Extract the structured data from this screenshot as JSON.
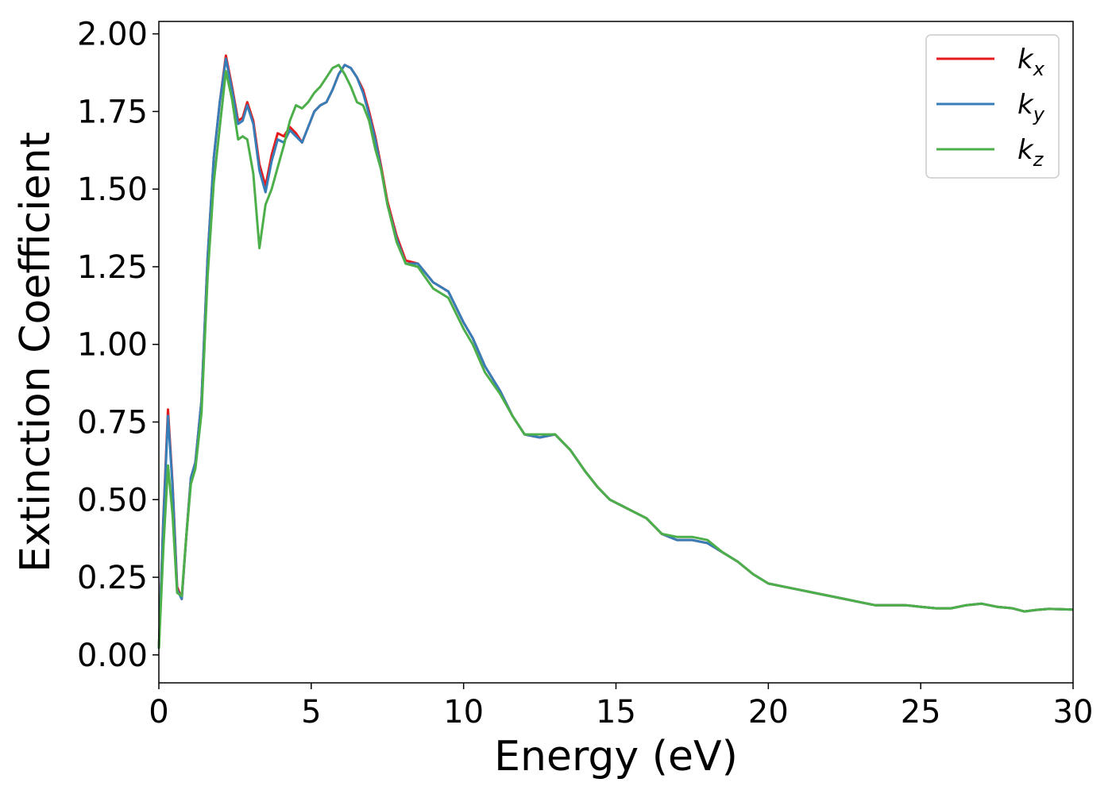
{
  "chart_data": {
    "type": "line",
    "xlabel": "Energy (eV)",
    "ylabel": "Extinction Coefficient",
    "xlim": [
      0,
      30
    ],
    "ylim": [
      -0.09,
      2.04
    ],
    "xticks": [
      0,
      5,
      10,
      15,
      20,
      25,
      30
    ],
    "yticks": [
      0.0,
      0.25,
      0.5,
      0.75,
      1.0,
      1.25,
      1.5,
      1.75,
      2.0
    ],
    "xtick_labels": [
      "0",
      "5",
      "10",
      "15",
      "20",
      "25",
      "30"
    ],
    "ytick_labels": [
      "0.00",
      "0.25",
      "0.50",
      "0.75",
      "1.00",
      "1.25",
      "1.50",
      "1.75",
      "2.00"
    ],
    "grid": false,
    "legend_position": "top-right",
    "series": [
      {
        "name": "k",
        "subscript": "x",
        "color": "#e41a1c",
        "x": [
          0,
          0.15,
          0.3,
          0.45,
          0.6,
          0.75,
          0.9,
          1.05,
          1.2,
          1.4,
          1.6,
          1.8,
          2.0,
          2.2,
          2.4,
          2.6,
          2.75,
          2.9,
          3.1,
          3.3,
          3.5,
          3.7,
          3.9,
          4.1,
          4.3,
          4.5,
          4.7,
          4.9,
          5.1,
          5.3,
          5.5,
          5.7,
          5.9,
          6.1,
          6.3,
          6.5,
          6.7,
          6.9,
          7.1,
          7.3,
          7.5,
          7.8,
          8.1,
          8.5,
          9.0,
          9.5,
          10.0,
          10.3,
          10.7,
          11.2,
          11.6,
          12.0,
          12.5,
          13.0,
          13.5,
          14.0,
          14.4,
          14.8,
          15.2,
          15.6,
          16.0,
          16.5,
          17.0,
          17.5,
          18.0,
          18.5,
          19.0,
          19.5,
          20.0,
          20.5,
          21.0,
          21.5,
          22.0,
          22.5,
          23.0,
          23.5,
          24.0,
          24.5,
          25.0,
          25.5,
          26.0,
          26.5,
          27.0,
          27.5,
          28.0,
          28.4,
          28.8,
          29.2,
          29.6,
          30.0
        ],
        "values": [
          0.02,
          0.45,
          0.79,
          0.55,
          0.22,
          0.18,
          0.38,
          0.57,
          0.62,
          0.82,
          1.28,
          1.6,
          1.78,
          1.93,
          1.83,
          1.72,
          1.73,
          1.78,
          1.72,
          1.58,
          1.51,
          1.61,
          1.68,
          1.67,
          1.7,
          1.68,
          1.65,
          1.7,
          1.75,
          1.77,
          1.78,
          1.82,
          1.87,
          1.9,
          1.89,
          1.86,
          1.82,
          1.75,
          1.67,
          1.57,
          1.46,
          1.35,
          1.27,
          1.26,
          1.2,
          1.17,
          1.07,
          1.02,
          0.93,
          0.85,
          0.77,
          0.71,
          0.7,
          0.71,
          0.66,
          0.59,
          0.54,
          0.5,
          0.48,
          0.46,
          0.44,
          0.39,
          0.37,
          0.37,
          0.36,
          0.33,
          0.3,
          0.26,
          0.23,
          0.22,
          0.21,
          0.2,
          0.19,
          0.18,
          0.17,
          0.16,
          0.16,
          0.16,
          0.155,
          0.15,
          0.15,
          0.16,
          0.165,
          0.155,
          0.15,
          0.14,
          0.145,
          0.148,
          0.147,
          0.146
        ]
      },
      {
        "name": "k",
        "subscript": "y",
        "color": "#377eb8",
        "x": [
          0,
          0.15,
          0.3,
          0.45,
          0.6,
          0.75,
          0.9,
          1.05,
          1.2,
          1.4,
          1.6,
          1.8,
          2.0,
          2.2,
          2.4,
          2.6,
          2.75,
          2.9,
          3.1,
          3.3,
          3.5,
          3.7,
          3.9,
          4.1,
          4.3,
          4.5,
          4.7,
          4.9,
          5.1,
          5.3,
          5.5,
          5.7,
          5.9,
          6.1,
          6.3,
          6.5,
          6.7,
          6.9,
          7.1,
          7.3,
          7.5,
          7.8,
          8.1,
          8.5,
          9.0,
          9.5,
          10.0,
          10.3,
          10.7,
          11.2,
          11.6,
          12.0,
          12.5,
          13.0,
          13.5,
          14.0,
          14.4,
          14.8,
          15.2,
          15.6,
          16.0,
          16.5,
          17.0,
          17.5,
          18.0,
          18.5,
          19.0,
          19.5,
          20.0,
          20.5,
          21.0,
          21.5,
          22.0,
          22.5,
          23.0,
          23.5,
          24.0,
          24.5,
          25.0,
          25.5,
          26.0,
          26.5,
          27.0,
          27.5,
          28.0,
          28.4,
          28.8,
          29.2,
          29.6,
          30.0
        ],
        "values": [
          0.02,
          0.44,
          0.77,
          0.54,
          0.21,
          0.18,
          0.38,
          0.57,
          0.62,
          0.82,
          1.28,
          1.6,
          1.78,
          1.92,
          1.82,
          1.71,
          1.72,
          1.77,
          1.71,
          1.56,
          1.49,
          1.59,
          1.66,
          1.65,
          1.69,
          1.67,
          1.65,
          1.7,
          1.75,
          1.77,
          1.78,
          1.82,
          1.87,
          1.9,
          1.89,
          1.86,
          1.81,
          1.74,
          1.66,
          1.56,
          1.45,
          1.34,
          1.26,
          1.26,
          1.2,
          1.17,
          1.07,
          1.02,
          0.93,
          0.85,
          0.77,
          0.71,
          0.7,
          0.71,
          0.66,
          0.59,
          0.54,
          0.5,
          0.48,
          0.46,
          0.44,
          0.39,
          0.37,
          0.37,
          0.36,
          0.33,
          0.3,
          0.26,
          0.23,
          0.22,
          0.21,
          0.2,
          0.19,
          0.18,
          0.17,
          0.16,
          0.16,
          0.16,
          0.155,
          0.15,
          0.15,
          0.16,
          0.165,
          0.155,
          0.15,
          0.14,
          0.145,
          0.148,
          0.147,
          0.146
        ]
      },
      {
        "name": "k",
        "subscript": "z",
        "color": "#4daf4a",
        "x": [
          0,
          0.15,
          0.3,
          0.45,
          0.6,
          0.75,
          0.9,
          1.05,
          1.2,
          1.4,
          1.6,
          1.8,
          2.0,
          2.2,
          2.4,
          2.6,
          2.75,
          2.9,
          3.1,
          3.3,
          3.5,
          3.7,
          3.9,
          4.1,
          4.3,
          4.5,
          4.7,
          4.9,
          5.1,
          5.3,
          5.5,
          5.7,
          5.9,
          6.1,
          6.3,
          6.5,
          6.7,
          6.9,
          7.1,
          7.3,
          7.5,
          7.8,
          8.1,
          8.5,
          9.0,
          9.5,
          10.0,
          10.3,
          10.7,
          11.2,
          11.6,
          12.0,
          12.5,
          13.0,
          13.5,
          14.0,
          14.4,
          14.8,
          15.2,
          15.6,
          16.0,
          16.5,
          17.0,
          17.5,
          18.0,
          18.5,
          19.0,
          19.5,
          20.0,
          20.5,
          21.0,
          21.5,
          22.0,
          22.5,
          23.0,
          23.5,
          24.0,
          24.5,
          25.0,
          25.5,
          26.0,
          26.5,
          27.0,
          27.5,
          28.0,
          28.4,
          28.8,
          29.2,
          29.6,
          30.0
        ],
        "values": [
          0.02,
          0.35,
          0.61,
          0.45,
          0.2,
          0.19,
          0.38,
          0.55,
          0.6,
          0.78,
          1.22,
          1.52,
          1.7,
          1.88,
          1.79,
          1.66,
          1.67,
          1.66,
          1.55,
          1.31,
          1.45,
          1.5,
          1.57,
          1.64,
          1.72,
          1.77,
          1.76,
          1.78,
          1.81,
          1.83,
          1.86,
          1.89,
          1.9,
          1.87,
          1.83,
          1.78,
          1.77,
          1.72,
          1.63,
          1.56,
          1.45,
          1.33,
          1.26,
          1.25,
          1.18,
          1.15,
          1.05,
          1.0,
          0.91,
          0.84,
          0.77,
          0.71,
          0.71,
          0.71,
          0.66,
          0.59,
          0.54,
          0.5,
          0.48,
          0.46,
          0.44,
          0.39,
          0.38,
          0.38,
          0.37,
          0.33,
          0.3,
          0.26,
          0.23,
          0.22,
          0.21,
          0.2,
          0.19,
          0.18,
          0.17,
          0.16,
          0.16,
          0.16,
          0.155,
          0.15,
          0.15,
          0.16,
          0.165,
          0.155,
          0.15,
          0.14,
          0.145,
          0.148,
          0.147,
          0.146
        ]
      }
    ]
  }
}
